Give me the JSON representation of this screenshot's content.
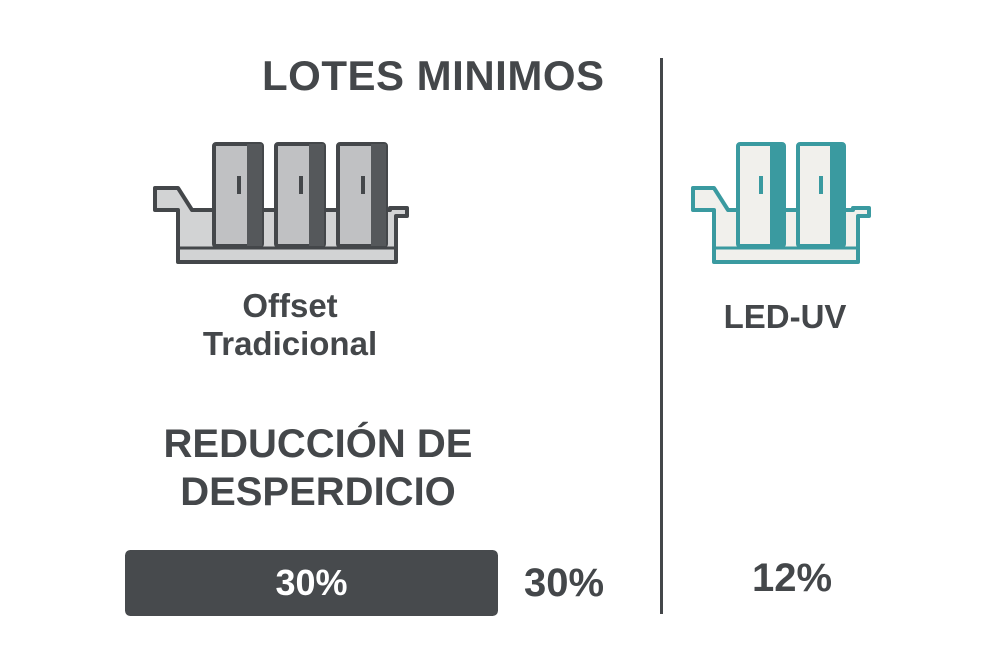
{
  "title": "LOTES MINIMOS",
  "columns": [
    {
      "label_line1": "Offset",
      "label_line2": "Tradicional",
      "icon": "offset-press-icon",
      "color": "#bdbfc0",
      "units": 3
    },
    {
      "label": "LED-UV",
      "icon": "led-uv-press-icon",
      "color": "#3a9aa0",
      "units": 2
    }
  ],
  "metric": {
    "label_line1": "REDUCCIÓN DE",
    "label_line2": "DESPERDICIO"
  },
  "bar": {
    "text": "30%",
    "fill_fraction": 1.0
  },
  "values": {
    "offset": "30%",
    "led_uv": "12%"
  },
  "colors": {
    "text": "#44474a",
    "offset_fill": "#bdbfc0",
    "led_accent": "#3a9aa0",
    "bar": "#474a4d"
  }
}
